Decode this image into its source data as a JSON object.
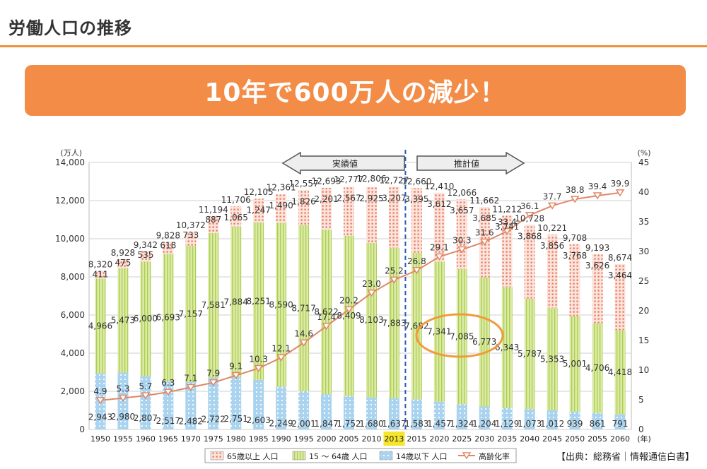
{
  "page": {
    "title": "労働人口の推移",
    "banner": "10年で600万人の減少！"
  },
  "source": "【出典：総務省｜情報通信白書】",
  "arrows": {
    "left": "実績値",
    "right": "推計値"
  },
  "colors": {
    "accent": "#f0923a",
    "banner": "#f28c46",
    "elderly": "#e8735a",
    "working": "#c9de82",
    "children": "#a9d3ee",
    "rate_line": "#e08767",
    "highlight_circle": "#f29a3a",
    "divider": "#2a5bb8",
    "year_highlight": "#f5e52c"
  },
  "chart_data": {
    "type": "bar",
    "stacked": true,
    "categories": [
      "1950",
      "1955",
      "1960",
      "1965",
      "1970",
      "1975",
      "1980",
      "1985",
      "1990",
      "1995",
      "2000",
      "2005",
      "2010",
      "2013",
      "2015",
      "2020",
      "2025",
      "2030",
      "2035",
      "2040",
      "2045",
      "2050",
      "2055",
      "2060"
    ],
    "x_unit_label": "(年)",
    "highlight_category": "2013",
    "series": [
      {
        "name": "14歳以下 人口",
        "values": [
          2943,
          2980,
          2807,
          2517,
          2482,
          2722,
          2751,
          2603,
          2249,
          2001,
          1847,
          1752,
          1680,
          1637,
          1583,
          1457,
          1324,
          1204,
          1129,
          1073,
          1012,
          939,
          861,
          791
        ]
      },
      {
        "name": "15〜64歳 人口",
        "values": [
          4966,
          5473,
          6000,
          6693,
          7157,
          7581,
          7884,
          8251,
          8590,
          8717,
          8622,
          8409,
          8103,
          7883,
          7682,
          7341,
          7085,
          6773,
          6343,
          5787,
          5353,
          5001,
          4706,
          4418
        ]
      },
      {
        "name": "65歳以上 人口",
        "values": [
          411,
          475,
          535,
          618,
          733,
          887,
          1065,
          1247,
          1490,
          1826,
          2201,
          2567,
          2925,
          3207,
          3395,
          3612,
          3657,
          3685,
          3741,
          3868,
          3856,
          3768,
          3626,
          3464
        ]
      }
    ],
    "totals": [
      8320,
      8928,
      9342,
      9828,
      10372,
      11194,
      11706,
      12105,
      12361,
      12557,
      12693,
      12777,
      12806,
      12727,
      12660,
      12410,
      12066,
      11662,
      11212,
      10728,
      10221,
      9708,
      9193,
      8674
    ],
    "line_series": {
      "name": "高齢化率",
      "values": [
        4.9,
        5.3,
        5.7,
        6.3,
        7.1,
        7.9,
        9.1,
        10.3,
        12.1,
        14.6,
        17.4,
        20.2,
        23.0,
        25.2,
        26.8,
        29.1,
        30.3,
        31.6,
        33.4,
        36.1,
        37.7,
        38.8,
        39.4,
        39.9
      ]
    },
    "labels": {
      "children": [
        "2,943",
        "2,980",
        "2,807",
        "2,517",
        "2,482",
        "2,722",
        "2,751",
        "2,603",
        "2,249",
        "2,001",
        "1,847",
        "1,752",
        "1,680",
        "1,637",
        "1,583",
        "1,457",
        "1,324",
        "1,204",
        "1,129",
        "1,073",
        "1,012",
        "939",
        "861",
        "791"
      ],
      "working": [
        "4,966",
        "5,473",
        "6,000",
        "6,693",
        "7,157",
        "7,581",
        "7,884",
        "8,251",
        "8,590",
        "8,717",
        "8,622",
        "8,409",
        "8,103",
        "7,883",
        "7,682",
        "7,341",
        "7,085",
        "6,773",
        "6,343",
        "5,787",
        "5,353",
        "5,001",
        "4,706",
        "4,418"
      ],
      "elderly": [
        "411",
        "475",
        "535",
        "618",
        "733",
        "887",
        "1,065",
        "1,247",
        "1,490",
        "1,826",
        "2,201",
        "2,567",
        "2,925",
        "3,207",
        "3,395",
        "3,612",
        "3,657",
        "3,685",
        "3,741",
        "3,868",
        "3,856",
        "3,768",
        "3,626",
        "3,464"
      ],
      "totals": [
        "8,320",
        "8,928",
        "9,342",
        "9,828",
        "10,372",
        "11,194",
        "11,706",
        "12,105",
        "12,361",
        "12,557",
        "12,693",
        "12,777",
        "12,806",
        "12,727",
        "12,660",
        "12,410",
        "12,066",
        "11,662",
        "11,212",
        "10,728",
        "10,221",
        "9,708",
        "9,193",
        "8,674"
      ],
      "rate": [
        "4.9",
        "5.3",
        "5.7",
        "6.3",
        "7.1",
        "7.9",
        "9.1",
        "10.3",
        "12.1",
        "14.6",
        "17.4",
        "20.2",
        "23.0",
        "25.2",
        "26.8",
        "29.1",
        "30.3",
        "31.6",
        "33.4",
        "36.1",
        "37.7",
        "38.8",
        "39.4",
        "39.9"
      ]
    },
    "left_axis": {
      "unit": "(万人)",
      "range": [
        0,
        14000
      ],
      "ticks": [
        "0",
        "2,000",
        "4,000",
        "6,000",
        "8,000",
        "10,000",
        "12,000",
        "14,000"
      ]
    },
    "right_axis": {
      "unit": "(%)",
      "range": [
        0,
        45
      ],
      "ticks": [
        "0",
        "5",
        "10",
        "15",
        "20",
        "25",
        "30",
        "35",
        "40",
        "45"
      ]
    },
    "legend": [
      "65歳以上 人口",
      "15 〜 64歳 人口",
      "14歳以下 人口",
      "高齢化率"
    ],
    "legend_position": "bottom",
    "grid": true
  }
}
